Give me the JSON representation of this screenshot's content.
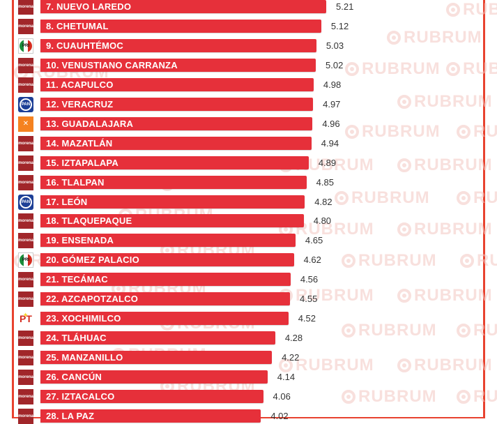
{
  "chart_data": {
    "type": "bar",
    "orientation": "horizontal",
    "xlim": [
      0,
      5.21
    ],
    "watermark": "RUBRUM",
    "categories": [
      "7. NUEVO LAREDO",
      "8. CHETUMAL",
      "9. CUAUHTÉMOC",
      "10. VENUSTIANO CARRANZA",
      "11. ACAPULCO",
      "12. VERACRUZ",
      "13. GUADALAJARA",
      "14. MAZATLÁN",
      "15. IZTAPALAPA",
      "16. TLALPAN",
      "17. LEÓN",
      "18. TLAQUEPAQUE",
      "19. ENSENADA",
      "20. GÓMEZ PALACIO",
      "21. TECÁMAC",
      "22. AZCAPOTZALCO",
      "23. XOCHIMILCO",
      "24. TLÁHUAC",
      "25. MANZANILLO",
      "26. CANCÚN",
      "27. IZTACALCO",
      "28. LA PAZ"
    ],
    "values": [
      5.21,
      5.12,
      5.03,
      5.02,
      4.98,
      4.97,
      4.96,
      4.94,
      4.89,
      4.85,
      4.82,
      4.8,
      4.65,
      4.62,
      4.56,
      4.55,
      4.52,
      4.28,
      4.22,
      4.14,
      4.06,
      4.02
    ],
    "value_labels": [
      "5.21",
      "5.12",
      "5.03",
      "5.02",
      "4.98",
      "4.97",
      "4.96",
      "4.94",
      "4.89",
      "4.85",
      "4.82",
      "4.80",
      "4.65",
      "4.62",
      "4.56",
      "4.55",
      "4.52",
      "4.28",
      "4.22",
      "4.14",
      "4.06",
      "4.02"
    ],
    "parties": [
      "morena",
      "morena",
      "pri",
      "morena",
      "morena",
      "pan",
      "mc",
      "morena",
      "morena",
      "morena",
      "pan",
      "morena",
      "morena",
      "pri",
      "morena",
      "morena",
      "pt",
      "morena",
      "morena",
      "morena",
      "morena",
      "morena"
    ],
    "party_logo_text": {
      "morena": "morena",
      "pri": "PRI",
      "pan": "PAN",
      "mc": "✕",
      "pt": "PT"
    },
    "colors": {
      "bar": "#e6303a",
      "frame": "#e8422f",
      "morena": "#a1262a",
      "pan": "#1d3f96",
      "mc": "#f58220",
      "pt": "#d52b1e"
    }
  }
}
